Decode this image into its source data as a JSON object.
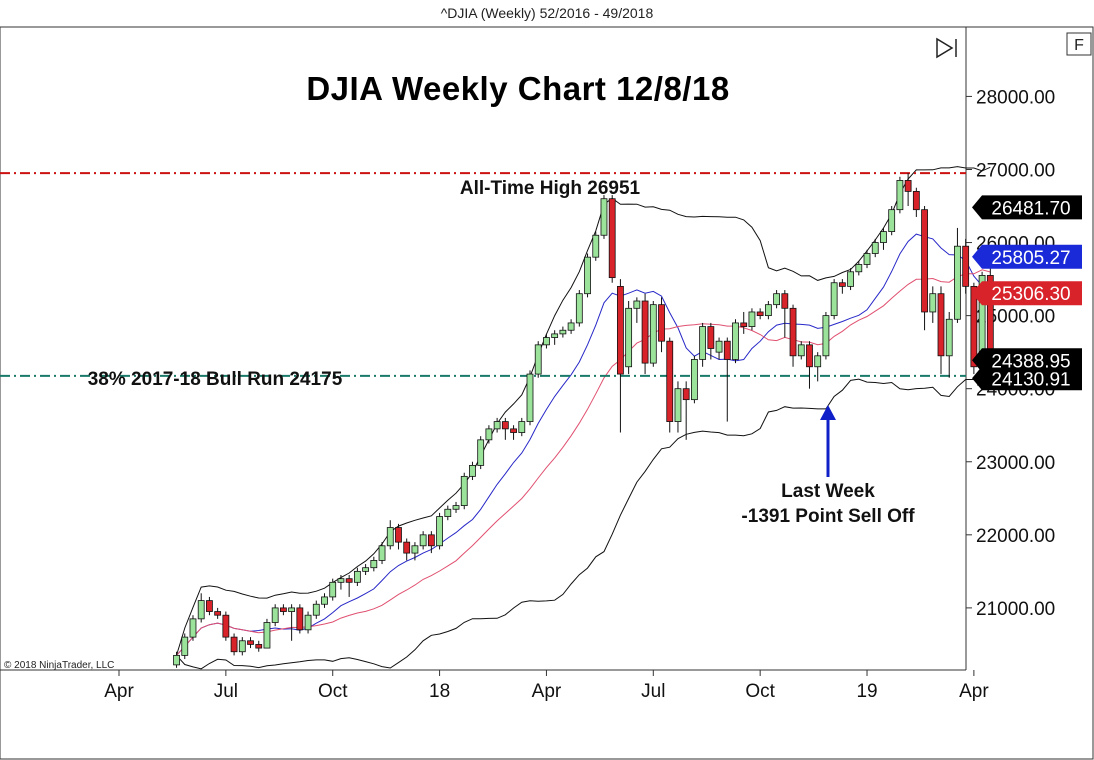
{
  "window": {
    "title": "^DJIA (Weekly)  52/2016 - 49/2018"
  },
  "buttons": {
    "play_icon": "play-end-icon",
    "f_label": "F"
  },
  "copyright": "© 2018 NinjaTrader, LLC",
  "colors": {
    "up_candle": "#9be29b",
    "down_candle": "#d8232a",
    "ath_line": "#cc1111",
    "fib_line": "#1a7a6a",
    "arrow": "#1020c8",
    "bb_line": "#111111",
    "ma_blue": "#2828c8",
    "ma_red": "#e05070"
  },
  "annotations": {
    "title": "DJIA Weekly Chart 12/8/18",
    "ath_label": "All-Time High 26951",
    "fib_label": "38% 2017-18 Bull Run 24175",
    "last_week_line1": "Last Week",
    "last_week_line2": "-1391 Point Sell Off"
  },
  "chart_data": {
    "type": "candlestick",
    "title": "DJIA Weekly Chart 12/8/18",
    "ylim": [
      20150,
      28950
    ],
    "y_ticks": [
      21000,
      22000,
      23000,
      24000,
      25000,
      26000,
      27000,
      28000
    ],
    "y_tick_labels": [
      "21000.00",
      "22000.00",
      "23000.00",
      "24000.00",
      "25000.00",
      "26000.00",
      "27000.00",
      "28000.00"
    ],
    "x_ticks": [
      {
        "label": "Apr",
        "week": 14
      },
      {
        "label": "Jul",
        "week": 27
      },
      {
        "label": "Oct",
        "week": 40
      },
      {
        "label": "18",
        "week": 53
      },
      {
        "label": "Apr",
        "week": 66
      },
      {
        "label": "Jul",
        "week": 79
      },
      {
        "label": "Oct",
        "week": 92
      },
      {
        "label": "19",
        "week": 105
      },
      {
        "label": "Apr",
        "week": 118
      }
    ],
    "reference_lines": [
      {
        "name": "All-Time High 26951",
        "value": 26951
      },
      {
        "name": "38% 2017-18 Bull Run 24175",
        "value": 24175
      }
    ],
    "price_flags": [
      {
        "label": "26481.70",
        "value": 26481.7,
        "color": "#000000"
      },
      {
        "label": "25805.27",
        "value": 25805.27,
        "color": "#1a2ad8"
      },
      {
        "label": "25306.30",
        "value": 25306.3,
        "color": "#d8232a"
      },
      {
        "label": "24388.95",
        "value": 24388.95,
        "color": "#000000"
      },
      {
        "label": "24130.91",
        "value": 24130.91,
        "color": "#000000"
      }
    ],
    "candles": [
      [
        21,
        20220,
        20350,
        20180,
        20400
      ],
      [
        22,
        20350,
        20600,
        20300,
        20650
      ],
      [
        23,
        20600,
        20850,
        20550,
        20900
      ],
      [
        24,
        20850,
        21100,
        20800,
        21200
      ],
      [
        25,
        21100,
        20950,
        20900,
        21150
      ],
      [
        26,
        20950,
        20900,
        20850,
        21000
      ],
      [
        27,
        20900,
        20600,
        20550,
        20950
      ],
      [
        28,
        20600,
        20400,
        20350,
        20650
      ],
      [
        29,
        20400,
        20550,
        20350,
        20600
      ],
      [
        30,
        20550,
        20500,
        20450,
        20600
      ],
      [
        31,
        20500,
        20450,
        20400,
        20550
      ],
      [
        32,
        20450,
        20800,
        20450,
        20850
      ],
      [
        33,
        20800,
        21000,
        20750,
        21050
      ],
      [
        34,
        21000,
        20950,
        20900,
        21050
      ],
      [
        35,
        20950,
        21000,
        20550,
        21050
      ],
      [
        36,
        21000,
        20700,
        20650,
        21050
      ],
      [
        37,
        20700,
        20900,
        20650,
        20950
      ],
      [
        38,
        20900,
        21050,
        20850,
        21100
      ],
      [
        39,
        21050,
        21150,
        21000,
        21200
      ],
      [
        40,
        21150,
        21350,
        21100,
        21400
      ],
      [
        41,
        21350,
        21400,
        21250,
        21450
      ],
      [
        42,
        21400,
        21350,
        21150,
        21450
      ],
      [
        43,
        21350,
        21500,
        21300,
        21550
      ],
      [
        44,
        21500,
        21550,
        21450,
        21600
      ],
      [
        45,
        21550,
        21650,
        21500,
        21700
      ],
      [
        46,
        21650,
        21850,
        21600,
        21900
      ],
      [
        47,
        21850,
        22100,
        21800,
        22200
      ],
      [
        48,
        22100,
        21900,
        21800,
        22150
      ],
      [
        49,
        21900,
        21750,
        21650,
        21950
      ],
      [
        50,
        21750,
        21850,
        21650,
        21900
      ],
      [
        51,
        21850,
        22000,
        21800,
        22050
      ],
      [
        52,
        22000,
        21850,
        21750,
        22050
      ],
      [
        53,
        21850,
        22250,
        21800,
        22300
      ],
      [
        54,
        22250,
        22350,
        22200,
        22400
      ],
      [
        55,
        22350,
        22400,
        22300,
        22450
      ],
      [
        56,
        22400,
        22800,
        22350,
        22850
      ],
      [
        57,
        22800,
        22950,
        22750,
        23000
      ],
      [
        58,
        22950,
        23300,
        22900,
        23350
      ],
      [
        59,
        23300,
        23450,
        23250,
        23500
      ],
      [
        60,
        23450,
        23550,
        23400,
        23600
      ],
      [
        61,
        23550,
        23450,
        23300,
        23600
      ],
      [
        62,
        23450,
        23400,
        23300,
        23500
      ],
      [
        63,
        23400,
        23550,
        23350,
        23600
      ],
      [
        64,
        23550,
        24200,
        23500,
        24250
      ],
      [
        65,
        24200,
        24600,
        24150,
        24650
      ],
      [
        66,
        24600,
        24700,
        24550,
        24750
      ],
      [
        67,
        24700,
        24750,
        24600,
        24800
      ],
      [
        68,
        24750,
        24800,
        24700,
        24850
      ],
      [
        69,
        24800,
        24900,
        24750,
        24950
      ],
      [
        70,
        24900,
        25300,
        24850,
        25350
      ],
      [
        71,
        25300,
        25800,
        25250,
        25850
      ],
      [
        72,
        25800,
        26100,
        25750,
        26150
      ],
      [
        73,
        26100,
        26600,
        26050,
        26650
      ],
      [
        74,
        26600,
        25520,
        25450,
        26650
      ],
      [
        75,
        25400,
        24200,
        23400,
        25500
      ],
      [
        76,
        24300,
        25100,
        24200,
        25200
      ],
      [
        77,
        25100,
        25200,
        24900,
        25250
      ],
      [
        78,
        25200,
        24350,
        24200,
        25300
      ],
      [
        79,
        24350,
        25150,
        24300,
        25200
      ],
      [
        80,
        25150,
        24650,
        24500,
        25250
      ],
      [
        81,
        24650,
        23550,
        23400,
        24700
      ],
      [
        82,
        23550,
        24000,
        23400,
        24100
      ],
      [
        83,
        24000,
        23850,
        23300,
        24100
      ],
      [
        84,
        23850,
        24400,
        23800,
        24450
      ],
      [
        85,
        24400,
        24850,
        24300,
        24900
      ],
      [
        86,
        24850,
        24550,
        24400,
        24900
      ],
      [
        87,
        24500,
        24650,
        24400,
        24700
      ],
      [
        88,
        24650,
        24400,
        23550,
        24700
      ],
      [
        89,
        24400,
        24900,
        24350,
        24950
      ],
      [
        90,
        24900,
        24850,
        24750,
        25050
      ],
      [
        91,
        24850,
        25050,
        24800,
        25100
      ],
      [
        92,
        25050,
        25000,
        24950,
        25100
      ],
      [
        93,
        25000,
        25150,
        24950,
        25200
      ],
      [
        94,
        25150,
        25300,
        25100,
        25350
      ],
      [
        95,
        25300,
        25100,
        24700,
        25350
      ],
      [
        96,
        25100,
        24450,
        24300,
        25150
      ],
      [
        97,
        24450,
        24600,
        24400,
        24650
      ],
      [
        98,
        24600,
        24300,
        24000,
        24650
      ],
      [
        99,
        24300,
        24450,
        24100,
        24500
      ],
      [
        100,
        24450,
        25000,
        24400,
        25050
      ],
      [
        101,
        25000,
        25450,
        24950,
        25500
      ],
      [
        102,
        25450,
        25400,
        25300,
        25500
      ],
      [
        103,
        25400,
        25600,
        25350,
        25650
      ],
      [
        104,
        25600,
        25700,
        25550,
        25750
      ],
      [
        105,
        25700,
        25850,
        25650,
        25900
      ],
      [
        106,
        25850,
        26000,
        25800,
        26050
      ],
      [
        107,
        26000,
        26150,
        25900,
        26200
      ],
      [
        108,
        26150,
        26450,
        26100,
        26500
      ],
      [
        109,
        26450,
        26850,
        26400,
        26900
      ],
      [
        110,
        26850,
        26700,
        26500,
        26951
      ],
      [
        111,
        26700,
        26450,
        26350,
        26750
      ],
      [
        112,
        26450,
        25050,
        24800,
        26500
      ],
      [
        113,
        25050,
        25300,
        24900,
        25400
      ],
      [
        114,
        25300,
        24450,
        24200,
        25400
      ],
      [
        115,
        24450,
        24950,
        24150,
        25050
      ],
      [
        116,
        24950,
        25950,
        24900,
        26200
      ],
      [
        117,
        25950,
        25400,
        25300,
        26050
      ],
      [
        118,
        25400,
        24300,
        24200,
        25450
      ],
      [
        119,
        24300,
        25550,
        24250,
        25600
      ],
      [
        120,
        25550,
        24388.95,
        24250,
        25950
      ]
    ]
  }
}
